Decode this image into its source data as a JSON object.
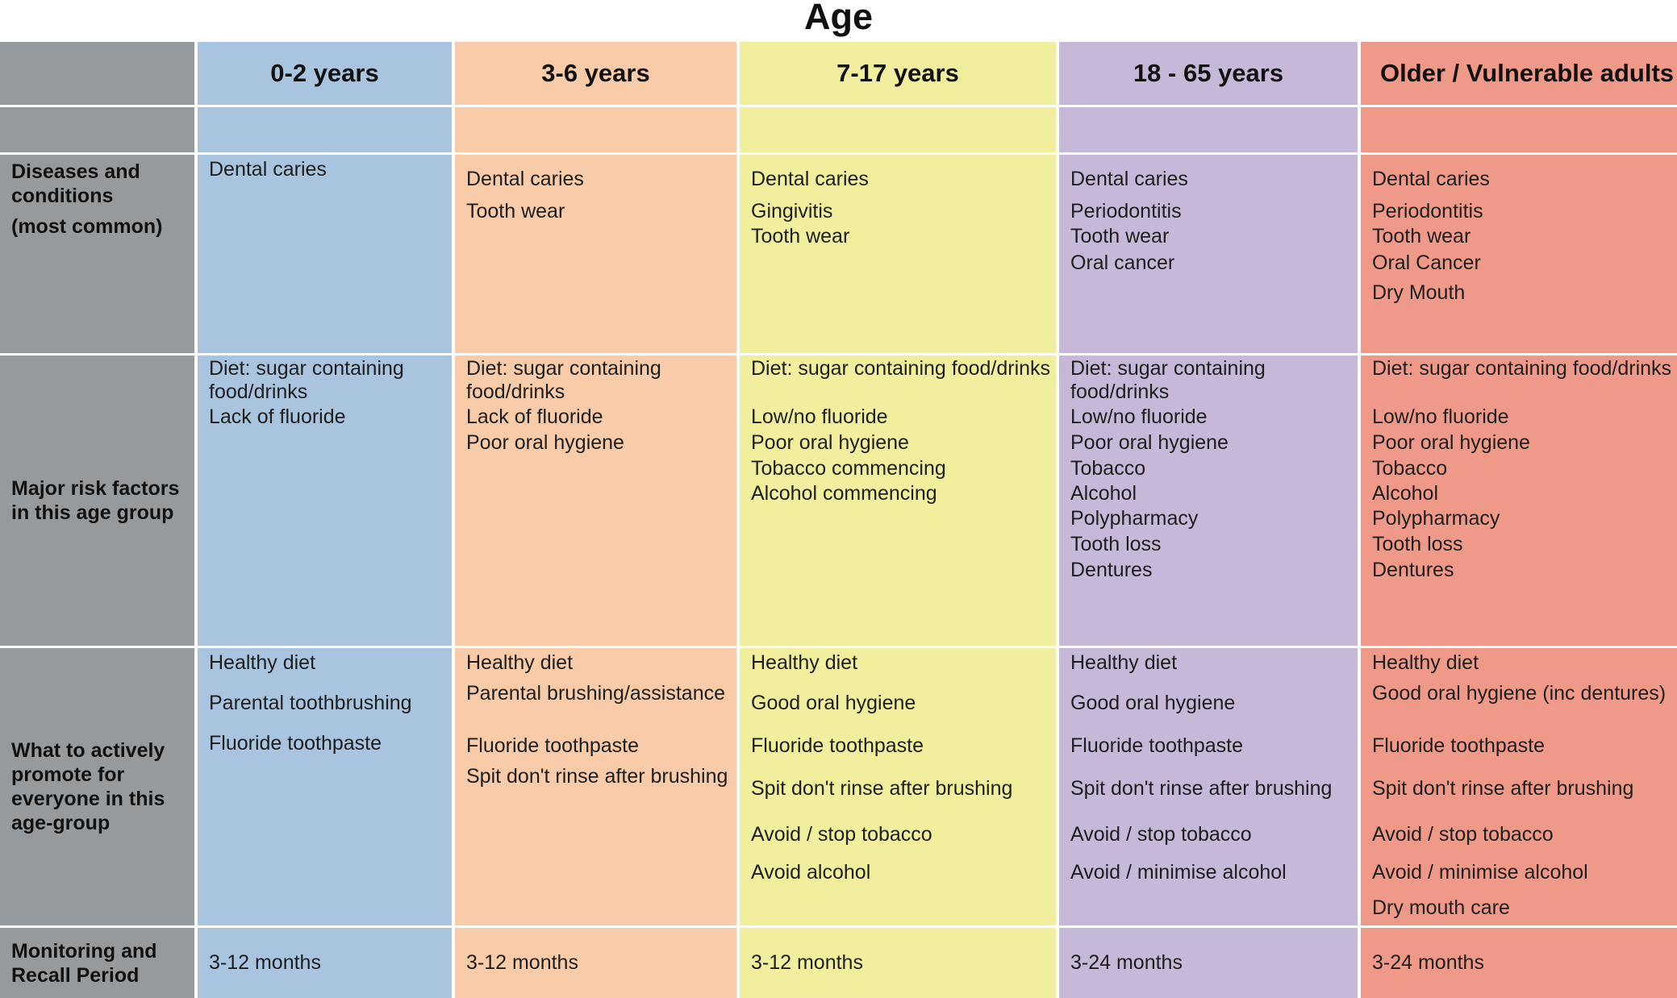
{
  "title": "Age",
  "headers": [
    "",
    "0-2 years",
    "3-6 years",
    "7-17 years",
    "18 - 65 years",
    "Older / Vulnerable adults"
  ],
  "row_labels": {
    "diseases": [
      "Diseases and conditions",
      "(most common)"
    ],
    "risk": "Major risk factors in this age group",
    "promote": "What to  actively promote for everyone in this age-group",
    "recall": "Monitoring and Recall Period"
  },
  "diseases": [
    [
      "Dental caries"
    ],
    [
      "Dental caries",
      "Tooth wear"
    ],
    [
      "Dental caries",
      "Gingivitis",
      "Tooth wear"
    ],
    [
      "Dental caries",
      "Periodontitis",
      "Tooth wear",
      "Oral cancer"
    ],
    [
      "Dental caries",
      "Periodontitis",
      "Tooth wear",
      "Oral Cancer",
      "Dry Mouth"
    ]
  ],
  "risk_factors": [
    [
      "Diet: sugar containing food/drinks",
      "Lack of fluoride"
    ],
    [
      "Diet: sugar containing food/drinks",
      "Lack of fluoride",
      "Poor oral hygiene"
    ],
    [
      "Diet: sugar containing food/drinks",
      "Low/no fluoride",
      "Poor oral hygiene",
      "Tobacco commencing",
      "Alcohol commencing"
    ],
    [
      "Diet: sugar containing food/drinks",
      "Low/no fluoride",
      "Poor oral hygiene",
      "Tobacco",
      "Alcohol",
      "Polypharmacy",
      "Tooth loss",
      "Dentures"
    ],
    [
      "Diet: sugar containing food/drinks",
      "Low/no fluoride",
      "Poor oral hygiene",
      "Tobacco",
      "Alcohol",
      "Polypharmacy",
      "Tooth loss",
      "Dentures"
    ]
  ],
  "promote": [
    [
      "Healthy diet",
      "Parental toothbrushing",
      "Fluoride toothpaste"
    ],
    [
      "Healthy diet",
      "Parental brushing/assistance",
      "Fluoride toothpaste",
      "Spit don't rinse after brushing"
    ],
    [
      "Healthy diet",
      "Good oral hygiene",
      "Fluoride toothpaste",
      "Spit don't rinse after brushing",
      "Avoid / stop tobacco",
      "Avoid alcohol"
    ],
    [
      "Healthy diet",
      "Good oral hygiene",
      "Fluoride toothpaste",
      "Spit don't rinse after brushing",
      "Avoid / stop tobacco",
      "Avoid / minimise alcohol"
    ],
    [
      "Healthy diet",
      "Good oral hygiene (inc dentures)",
      "Fluoride toothpaste",
      "Spit don't rinse after brushing",
      "Avoid / stop tobacco",
      "Avoid / minimise alcohol",
      "Dry mouth care"
    ]
  ],
  "recall": [
    "3-12 months",
    "3-12 months",
    "3-12 months",
    "3-24 months",
    "3-24 months"
  ],
  "colors": {
    "label_column": "#979a9d",
    "0-2 years": "#a9c4df",
    "3-6 years": "#f8cba9",
    "7-17 years": "#f1ef9e",
    "18 - 65 years": "#c5b8d8",
    "Older / Vulnerable adults": "#ef9a89"
  }
}
